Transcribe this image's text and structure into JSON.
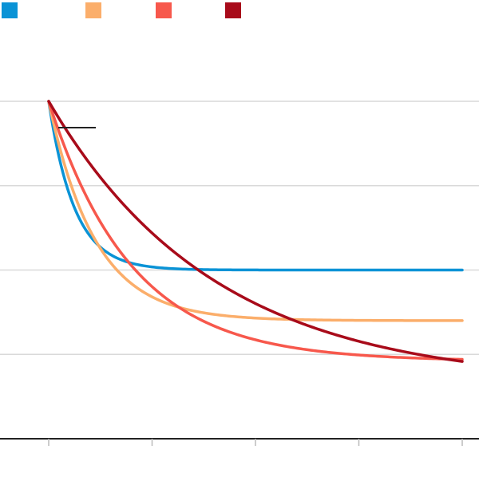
{
  "chart_data": {
    "type": "line",
    "title": "",
    "xlabel": "",
    "ylabel": "",
    "legend_position": "top-left",
    "grid": true,
    "series": [
      {
        "name": "",
        "color": "#0a93d6",
        "start": 1.0,
        "end": 0.5,
        "rate": 0.25
      },
      {
        "name": "",
        "color": "#fbae6b",
        "start": 1.0,
        "end": 0.35,
        "rate": 0.45
      },
      {
        "name": "",
        "color": "#f7584c",
        "start": 1.0,
        "end": 0.23,
        "rate": 0.8
      },
      {
        "name": "",
        "color": "#a80b1a",
        "start": 1.0,
        "end": 0.16,
        "rate": 1.6
      }
    ],
    "x_range": [
      0,
      4
    ],
    "y_range": [
      0,
      1
    ],
    "x_ticks": [
      0,
      1,
      2,
      3,
      4
    ],
    "y_gridlines": [
      0.25,
      0.5,
      0.75,
      1.0
    ],
    "annotation_line": true
  }
}
